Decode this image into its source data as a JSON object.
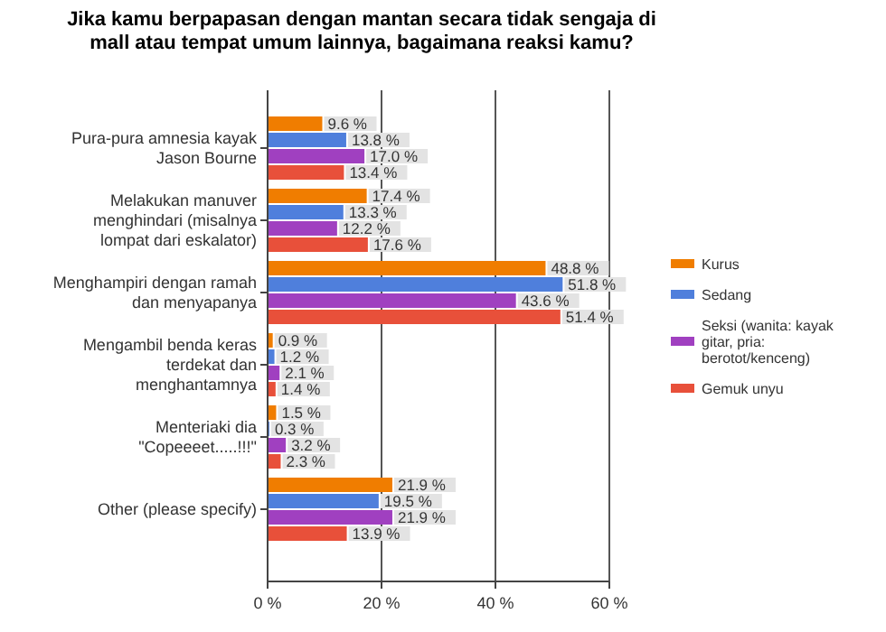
{
  "chart_data": {
    "type": "bar",
    "orientation": "horizontal",
    "title": "Jika kamu berpapasan dengan mantan secara tidak sengaja di mall atau tempat umum lainnya, bagaimana reaksi kamu?",
    "categories": [
      "Pura-pura amnesia kayak Jason Bourne",
      "Melakukan manuver menghindari (misalnya lompat dari eskalator)",
      "Menghampiri dengan ramah dan menyapanya",
      "Mengambil benda keras terdekat dan menghantamnya",
      "Menteriaki dia \"Copeeeet.....!!!\"",
      "Other (please specify)"
    ],
    "series": [
      {
        "name": "Kurus",
        "color": "#f07d00",
        "values": [
          9.6,
          17.4,
          48.8,
          0.9,
          1.5,
          21.9
        ],
        "value_labels": [
          "9.6 %",
          "17.4 %",
          "48.8 %",
          "0.9 %",
          "1.5 %",
          "21.9 %"
        ]
      },
      {
        "name": "Sedang",
        "color": "#4f7fdc",
        "values": [
          13.8,
          13.3,
          51.8,
          1.2,
          0.3,
          19.5
        ],
        "value_labels": [
          "13.8 %",
          "13.3 %",
          "51.8 %",
          "1.2 %",
          "0.3 %",
          "19.5 %"
        ]
      },
      {
        "name": "Seksi (wanita: kayak gitar, pria: berotot/kenceng)",
        "color": "#a040c0",
        "values": [
          17.0,
          12.2,
          43.6,
          2.1,
          3.2,
          21.9
        ],
        "value_labels": [
          "17.0 %",
          "12.2 %",
          "43.6 %",
          "2.1 %",
          "3.2 %",
          "21.9 %"
        ]
      },
      {
        "name": "Gemuk unyu",
        "color": "#e8503a",
        "values": [
          13.4,
          17.6,
          51.4,
          1.4,
          2.3,
          13.9
        ],
        "value_labels": [
          "13.4 %",
          "17.6 %",
          "51.4 %",
          "1.4 %",
          "2.3 %",
          "13.9 %"
        ]
      }
    ],
    "xlim": [
      0,
      60
    ],
    "xticks": [
      {
        "value": 0,
        "label": "0 %"
      },
      {
        "value": 20,
        "label": "20 %"
      },
      {
        "value": 40,
        "label": "40 %"
      },
      {
        "value": 60,
        "label": "60 %"
      }
    ],
    "grid": "x",
    "legend": "right"
  }
}
